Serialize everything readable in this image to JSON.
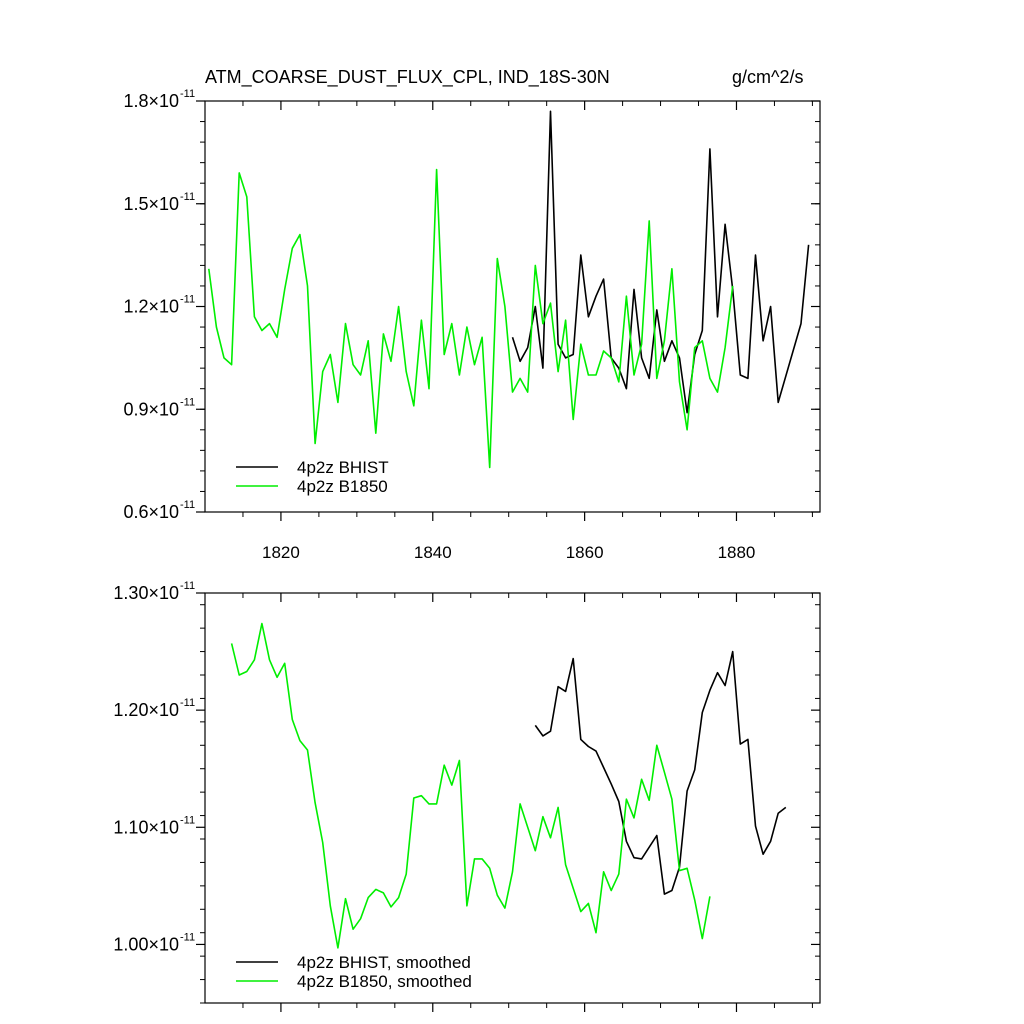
{
  "header": {
    "title": "ATM_COARSE_DUST_FLUX_CPL, IND_18S-30N",
    "units": "g/cm^2/s"
  },
  "colors": {
    "bhist": "#000000",
    "b1850": "#00ee00",
    "axis": "#000000"
  },
  "chart_data": [
    {
      "type": "line",
      "xlim": [
        1810,
        1891
      ],
      "ylim": [
        6e-12,
        1.8e-11
      ],
      "x_ticks": [
        1820,
        1840,
        1860,
        1880
      ],
      "x_tick_labels": [
        "1820",
        "1840",
        "1860",
        "1880"
      ],
      "y_ticks": [
        6e-12,
        9e-12,
        1.2e-11,
        1.5e-11,
        1.8e-11
      ],
      "y_tick_labels": [
        {
          "mant": "0.6",
          "exp": "-11"
        },
        {
          "mant": "0.9",
          "exp": "-11"
        },
        {
          "mant": "1.2",
          "exp": "-11"
        },
        {
          "mant": "1.5",
          "exp": "-11"
        },
        {
          "mant": "1.8",
          "exp": "-11"
        }
      ],
      "legend": "bottom-left",
      "series": [
        {
          "name": "4p2z BHIST",
          "color": "#000000",
          "x": [
            1850.5,
            1851.5,
            1852.5,
            1853.5,
            1854.5,
            1855.5,
            1856.5,
            1857.5,
            1858.5,
            1859.5,
            1860.5,
            1861.5,
            1862.5,
            1863.5,
            1864.5,
            1865.5,
            1866.5,
            1867.5,
            1868.5,
            1869.5,
            1870.5,
            1871.5,
            1872.5,
            1873.5,
            1874.5,
            1875.5,
            1876.5,
            1877.5,
            1878.5,
            1879.5,
            1880.5,
            1881.5,
            1882.5,
            1883.5,
            1884.5,
            1885.5,
            1888.5,
            1889.5
          ],
          "y": [
            1.11e-11,
            1.04e-11,
            1.08e-11,
            1.2e-11,
            1.02e-11,
            1.77e-11,
            1.09e-11,
            1.05e-11,
            1.06e-11,
            1.35e-11,
            1.17e-11,
            1.23e-11,
            1.28e-11,
            1.05e-11,
            1.02e-11,
            9.6e-12,
            1.25e-11,
            1.05e-11,
            9.9e-12,
            1.19e-11,
            1.04e-11,
            1.1e-11,
            1.05e-11,
            8.9e-12,
            1.06e-11,
            1.13e-11,
            1.66e-11,
            1.17e-11,
            1.44e-11,
            1.25e-11,
            1e-11,
            9.9e-12,
            1.35e-11,
            1.1e-11,
            1.2e-11,
            9.2e-12,
            1.15e-11,
            1.38e-11
          ]
        },
        {
          "name": "4p2z B1850",
          "color": "#00ee00",
          "x": [
            1810.5,
            1811.5,
            1812.5,
            1813.5,
            1814.5,
            1815.5,
            1816.5,
            1817.5,
            1818.5,
            1819.5,
            1820.5,
            1821.5,
            1822.5,
            1823.5,
            1824.5,
            1825.5,
            1826.5,
            1827.5,
            1828.5,
            1829.5,
            1830.5,
            1831.5,
            1832.5,
            1833.5,
            1834.5,
            1835.5,
            1836.5,
            1837.5,
            1838.5,
            1839.5,
            1840.5,
            1841.5,
            1842.5,
            1843.5,
            1844.5,
            1845.5,
            1846.5,
            1847.5,
            1848.5,
            1849.5,
            1850.5,
            1851.5,
            1852.5,
            1853.5,
            1854.5,
            1855.5,
            1856.5,
            1857.5,
            1858.5,
            1859.5,
            1860.5,
            1861.5,
            1862.5,
            1863.5,
            1864.5,
            1865.5,
            1866.5,
            1867.5,
            1868.5,
            1869.5,
            1870.5,
            1871.5,
            1872.5,
            1873.5,
            1874.5,
            1875.5,
            1876.5,
            1877.5,
            1878.5,
            1879.5
          ],
          "y": [
            1.31e-11,
            1.14e-11,
            1.05e-11,
            1.03e-11,
            1.59e-11,
            1.52e-11,
            1.17e-11,
            1.13e-11,
            1.15e-11,
            1.11e-11,
            1.25e-11,
            1.37e-11,
            1.41e-11,
            1.26e-11,
            8e-12,
            1.01e-11,
            1.06e-11,
            9.2e-12,
            1.15e-11,
            1.03e-11,
            1e-11,
            1.1e-11,
            8.3e-12,
            1.12e-11,
            1.04e-11,
            1.2e-11,
            1.01e-11,
            9.1e-12,
            1.16e-11,
            9.6e-12,
            1.6e-11,
            1.06e-11,
            1.15e-11,
            1e-11,
            1.14e-11,
            1.03e-11,
            1.11e-11,
            7.3e-12,
            1.34e-11,
            1.2e-11,
            9.5e-12,
            9.9e-12,
            9.5e-12,
            1.32e-11,
            1.15e-11,
            1.21e-11,
            1.01e-11,
            1.16e-11,
            8.7e-12,
            1.09e-11,
            1e-11,
            1e-11,
            1.07e-11,
            1.05e-11,
            9.8e-12,
            1.23e-11,
            1e-11,
            1.09e-11,
            1.45e-11,
            9.9e-12,
            1.1e-11,
            1.31e-11,
            9.8e-12,
            8.4e-12,
            1.08e-11,
            1.1e-11,
            9.9e-12,
            9.5e-12,
            1.08e-11,
            1.26e-11
          ]
        }
      ]
    },
    {
      "type": "line",
      "xlim": [
        1810,
        1891
      ],
      "ylim": [
        9.5e-12,
        1.3e-11
      ],
      "x_ticks": [
        1820,
        1840,
        1860,
        1880
      ],
      "x_tick_labels": [
        "",
        "",
        "",
        ""
      ],
      "y_ticks": [
        1e-11,
        1.1e-11,
        1.2e-11,
        1.3e-11
      ],
      "y_tick_labels": [
        {
          "mant": "1.00",
          "exp": "-11"
        },
        {
          "mant": "1.10",
          "exp": "-11"
        },
        {
          "mant": "1.20",
          "exp": "-11"
        },
        {
          "mant": "1.30",
          "exp": "-11"
        }
      ],
      "legend": "bottom-left",
      "series": [
        {
          "name": "4p2z BHIST, smoothed",
          "color": "#000000",
          "x": [
            1853.5,
            1854.5,
            1855.5,
            1856.5,
            1857.5,
            1858.5,
            1859.5,
            1860.5,
            1861.5,
            1862.5,
            1863.5,
            1864.5,
            1865.5,
            1866.5,
            1867.5,
            1868.5,
            1869.5,
            1870.5,
            1871.5,
            1872.5,
            1873.5,
            1874.5,
            1875.5,
            1876.5,
            1877.5,
            1878.5,
            1879.5,
            1880.5,
            1881.5,
            1882.5,
            1883.5,
            1884.5,
            1885.5,
            1886.5
          ],
          "y": [
            1.187e-11,
            1.178e-11,
            1.182e-11,
            1.22e-11,
            1.216e-11,
            1.244e-11,
            1.175e-11,
            1.169e-11,
            1.165e-11,
            1.151e-11,
            1.137e-11,
            1.122e-11,
            1.088e-11,
            1.074e-11,
            1.073e-11,
            1.083e-11,
            1.093e-11,
            1.043e-11,
            1.046e-11,
            1.066e-11,
            1.131e-11,
            1.149e-11,
            1.198e-11,
            1.217e-11,
            1.232e-11,
            1.221e-11,
            1.25e-11,
            1.171e-11,
            1.175e-11,
            1.101e-11,
            1.077e-11,
            1.088e-11,
            1.112e-11,
            1.117e-11
          ]
        },
        {
          "name": "4p2z B1850, smoothed",
          "color": "#00ee00",
          "x": [
            1813.5,
            1814.5,
            1815.5,
            1816.5,
            1817.5,
            1818.5,
            1819.5,
            1820.5,
            1821.5,
            1822.5,
            1823.5,
            1824.5,
            1825.5,
            1826.5,
            1827.5,
            1828.5,
            1829.5,
            1830.5,
            1831.5,
            1832.5,
            1833.5,
            1834.5,
            1835.5,
            1836.5,
            1837.5,
            1838.5,
            1839.5,
            1840.5,
            1841.5,
            1842.5,
            1843.5,
            1844.5,
            1845.5,
            1846.5,
            1847.5,
            1848.5,
            1849.5,
            1850.5,
            1851.5,
            1852.5,
            1853.5,
            1854.5,
            1855.5,
            1856.5,
            1857.5,
            1858.5,
            1859.5,
            1860.5,
            1861.5,
            1862.5,
            1863.5,
            1864.5,
            1865.5,
            1866.5,
            1867.5,
            1868.5,
            1869.5,
            1870.5,
            1871.5,
            1872.5,
            1873.5,
            1874.5,
            1875.5,
            1876.5
          ],
          "y": [
            1.257e-11,
            1.23e-11,
            1.233e-11,
            1.243e-11,
            1.274e-11,
            1.243e-11,
            1.228e-11,
            1.24e-11,
            1.192e-11,
            1.174e-11,
            1.166e-11,
            1.121e-11,
            1.087e-11,
            1.033e-11,
            9.97e-12,
            1.039e-11,
            1.013e-11,
            1.022e-11,
            1.04e-11,
            1.047e-11,
            1.044e-11,
            1.032e-11,
            1.04e-11,
            1.06e-11,
            1.125e-11,
            1.127e-11,
            1.12e-11,
            1.12e-11,
            1.153e-11,
            1.136e-11,
            1.157e-11,
            1.033e-11,
            1.073e-11,
            1.073e-11,
            1.065e-11,
            1.042e-11,
            1.031e-11,
            1.062e-11,
            1.12e-11,
            1.1e-11,
            1.08e-11,
            1.109e-11,
            1.091e-11,
            1.117e-11,
            1.068e-11,
            1.048e-11,
            1.028e-11,
            1.035e-11,
            1.01e-11,
            1.062e-11,
            1.046e-11,
            1.06e-11,
            1.124e-11,
            1.108e-11,
            1.141e-11,
            1.123e-11,
            1.17e-11,
            1.147e-11,
            1.124e-11,
            1.063e-11,
            1.065e-11,
            1.038e-11,
            1.005e-11,
            1.041e-11
          ]
        }
      ]
    }
  ]
}
